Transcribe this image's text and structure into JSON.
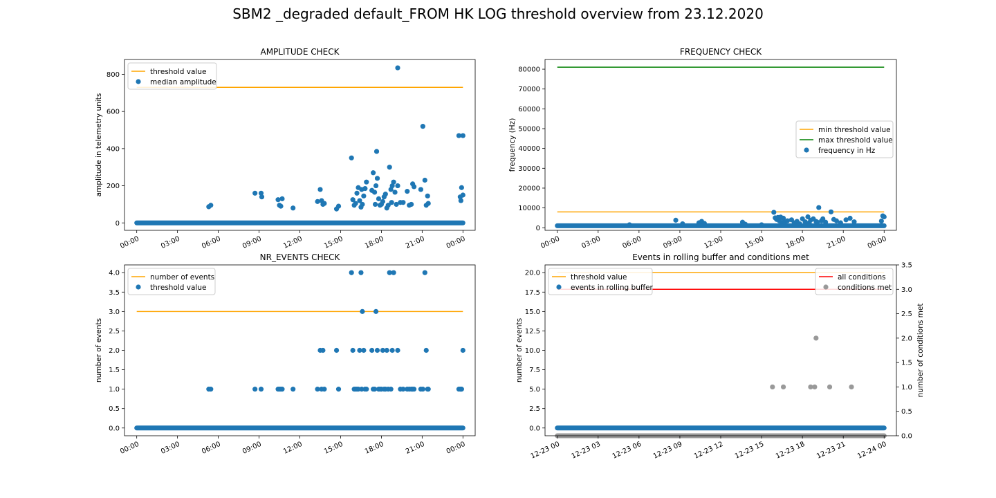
{
  "figure": {
    "title": "SBM2 _degraded default_FROM HK LOG threshold overview from 23.12.2020"
  },
  "colors": {
    "threshold": "#ffa500",
    "max_threshold": "#008000",
    "all_conditions": "#ff0000",
    "points": "#1f77b4",
    "conditions_met": "#999999"
  },
  "chart_data": [
    {
      "type": "scatter",
      "title": "AMPLITUDE CHECK",
      "xlabel": "",
      "ylabel": "amplitude in telemetry units",
      "xlim": [
        -0.9,
        24.9
      ],
      "ylim": [
        -40,
        880
      ],
      "x_ticks": [
        0,
        3,
        6,
        9,
        12,
        15,
        18,
        21,
        24
      ],
      "x_tick_labels": [
        "00:00",
        "03:00",
        "06:00",
        "09:00",
        "12:00",
        "15:00",
        "18:00",
        "21:00",
        "00:00"
      ],
      "y_ticks": [
        0,
        200,
        400,
        600,
        800
      ],
      "y_tick_labels": [
        "0",
        "200",
        "400",
        "600",
        "800"
      ],
      "legend": {
        "position": "top-left",
        "entries": [
          {
            "label": "threshold value",
            "kind": "line",
            "color": "#ffa500"
          },
          {
            "label": "median amplitude",
            "kind": "marker",
            "color": "#1f77b4"
          }
        ]
      },
      "lines": [
        {
          "name": "threshold value",
          "color": "#ffa500",
          "x": [
            0,
            24
          ],
          "y": [
            730,
            730
          ]
        }
      ],
      "baseline": {
        "x_start": 0,
        "x_end": 24,
        "y": 0
      },
      "points": {
        "x": [
          5.3,
          5.45,
          8.7,
          9.15,
          9.2,
          10.4,
          10.5,
          10.6,
          10.7,
          11.5,
          13.3,
          13.5,
          13.6,
          13.7,
          13.8,
          14.7,
          14.85,
          15.8,
          15.9,
          16.0,
          16.1,
          16.2,
          16.3,
          16.4,
          16.5,
          16.55,
          16.6,
          16.7,
          16.8,
          16.9,
          17.3,
          17.4,
          17.5,
          17.55,
          17.6,
          17.65,
          17.7,
          17.8,
          17.9,
          18.0,
          18.1,
          18.2,
          18.3,
          18.4,
          18.5,
          18.6,
          18.7,
          18.75,
          18.8,
          18.9,
          19.0,
          19.1,
          19.2,
          19.4,
          19.6,
          19.9,
          20.05,
          20.2,
          20.3,
          20.4,
          20.9,
          21.05,
          21.2,
          21.3,
          21.4,
          21.45,
          23.7,
          23.8,
          23.85,
          23.9,
          24.0,
          24.0
        ],
        "y": [
          87,
          95,
          160,
          160,
          140,
          125,
          95,
          90,
          130,
          80,
          115,
          180,
          120,
          100,
          105,
          75,
          90,
          350,
          125,
          95,
          105,
          160,
          190,
          120,
          85,
          180,
          100,
          145,
          185,
          220,
          175,
          270,
          165,
          100,
          200,
          385,
          240,
          130,
          95,
          100,
          115,
          140,
          155,
          80,
          95,
          300,
          180,
          110,
          200,
          220,
          165,
          100,
          200,
          110,
          110,
          170,
          95,
          100,
          210,
          195,
          180,
          520,
          230,
          95,
          145,
          105,
          470,
          140,
          120,
          190,
          150,
          470
        ]
      },
      "outlier": {
        "x": 19.2,
        "y": 835
      }
    },
    {
      "type": "scatter",
      "title": "FREQUENCY CHECK",
      "xlabel": "",
      "ylabel": "frequency (Hz)",
      "xlim": [
        -0.9,
        24.9
      ],
      "ylim": [
        -1300,
        84900
      ],
      "x_ticks": [
        0,
        3,
        6,
        9,
        12,
        15,
        18,
        21,
        24
      ],
      "x_tick_labels": [
        "00:00",
        "03:00",
        "06:00",
        "09:00",
        "12:00",
        "15:00",
        "18:00",
        "21:00",
        "00:00"
      ],
      "y_ticks": [
        0,
        10000,
        20000,
        30000,
        40000,
        50000,
        60000,
        70000,
        80000
      ],
      "y_tick_labels": [
        "0",
        "10000",
        "20000",
        "30000",
        "40000",
        "50000",
        "60000",
        "70000",
        "80000"
      ],
      "legend": {
        "position": "center-right",
        "entries": [
          {
            "label": "min threshold value",
            "kind": "line",
            "color": "#ffa500"
          },
          {
            "label": "max threshold value",
            "kind": "line",
            "color": "#008000"
          },
          {
            "label": "frequency in Hz",
            "kind": "marker",
            "color": "#1f77b4"
          }
        ]
      },
      "lines": [
        {
          "name": "min threshold value",
          "color": "#ffa500",
          "x": [
            0,
            24
          ],
          "y": [
            8000,
            8000
          ]
        },
        {
          "name": "max threshold value",
          "color": "#008000",
          "x": [
            0,
            24
          ],
          "y": [
            81000,
            81000
          ]
        }
      ],
      "baseline": {
        "x_start": 0,
        "x_end": 24,
        "y": 1000
      },
      "points": {
        "x": [
          5.3,
          8.7,
          9.2,
          10.4,
          10.6,
          10.8,
          13.6,
          13.8,
          15.0,
          15.9,
          16.0,
          16.1,
          16.2,
          16.3,
          16.4,
          16.5,
          16.6,
          16.7,
          16.9,
          17.2,
          17.4,
          17.6,
          17.8,
          18.0,
          18.2,
          18.4,
          18.5,
          18.6,
          18.8,
          19.0,
          19.1,
          19.2,
          19.4,
          19.5,
          19.7,
          20.1,
          20.3,
          20.5,
          20.8,
          21.2,
          21.5,
          21.8,
          23.8,
          23.9,
          24.0
        ],
        "y": [
          1500,
          3800,
          2000,
          2500,
          3200,
          2200,
          2800,
          1800,
          1500,
          7800,
          5000,
          4200,
          5200,
          3500,
          5400,
          2500,
          4800,
          2800,
          3500,
          4000,
          2500,
          3200,
          2000,
          4500,
          3000,
          5500,
          2500,
          3800,
          4500,
          3200,
          2800,
          10200,
          3500,
          4500,
          2800,
          8000,
          4200,
          3500,
          2500,
          4000,
          4800,
          3000,
          3400,
          6000,
          5500
        ]
      }
    },
    {
      "type": "scatter",
      "title": "NR_EVENTS CHECK",
      "xlabel": "",
      "ylabel": "number of events",
      "xlim": [
        -0.9,
        24.9
      ],
      "ylim": [
        -0.2,
        4.2
      ],
      "x_ticks": [
        0,
        3,
        6,
        9,
        12,
        15,
        18,
        21,
        24
      ],
      "x_tick_labels": [
        "00:00",
        "03:00",
        "06:00",
        "09:00",
        "12:00",
        "15:00",
        "18:00",
        "21:00",
        "00:00"
      ],
      "y_ticks": [
        0,
        0.5,
        1,
        1.5,
        2,
        2.5,
        3,
        3.5,
        4
      ],
      "y_tick_labels": [
        "0.0",
        "0.5",
        "1.0",
        "1.5",
        "2.0",
        "2.5",
        "3.0",
        "3.5",
        "4.0"
      ],
      "legend": {
        "position": "top-left",
        "entries": [
          {
            "label": "number of events",
            "kind": "line",
            "color": "#ffa500"
          },
          {
            "label": "threshold value",
            "kind": "marker",
            "color": "#1f77b4"
          }
        ]
      },
      "lines": [
        {
          "name": "number of events",
          "color": "#ffa500",
          "x": [
            0,
            24
          ],
          "y": [
            3,
            3
          ]
        }
      ],
      "baseline": {
        "x_start": 0,
        "x_end": 24,
        "y": 0
      },
      "points": {
        "x": [
          5.3,
          5.45,
          8.7,
          9.15,
          10.4,
          10.5,
          10.6,
          10.7,
          11.5,
          13.3,
          13.5,
          13.6,
          13.7,
          13.8,
          14.7,
          14.85,
          15.8,
          15.9,
          16.0,
          16.1,
          16.2,
          16.3,
          16.4,
          16.5,
          16.55,
          16.6,
          16.7,
          16.8,
          16.9,
          17.3,
          17.4,
          17.5,
          17.6,
          17.7,
          17.8,
          17.9,
          18.0,
          18.1,
          18.2,
          18.3,
          18.4,
          18.5,
          18.6,
          18.7,
          18.8,
          18.9,
          19.2,
          19.4,
          19.6,
          19.9,
          20.05,
          20.2,
          20.3,
          20.4,
          20.9,
          21.05,
          21.2,
          21.3,
          21.4,
          21.45,
          23.7,
          23.8,
          23.85,
          23.9,
          24.0
        ],
        "y": [
          1,
          1,
          1,
          1,
          1,
          1,
          1,
          1,
          1,
          1,
          2,
          1,
          2,
          1,
          2,
          1,
          4,
          2,
          1,
          1,
          1,
          1,
          2,
          4,
          1,
          3,
          2,
          1,
          1,
          2,
          1,
          1,
          3,
          2,
          1,
          1,
          1,
          2,
          1,
          1,
          2,
          1,
          4,
          1,
          2,
          4,
          2,
          1,
          1,
          1,
          1,
          1,
          1,
          1,
          1,
          1,
          4,
          2,
          1,
          1,
          1,
          1,
          1,
          1,
          2
        ]
      }
    },
    {
      "type": "scatter",
      "title": "Events in rolling buffer and conditions met",
      "xlabel": "",
      "ylabel": "number of events",
      "ylabel_right": "number of conditions met",
      "xlim": [
        -0.9,
        24.9
      ],
      "ylim": [
        -1,
        21
      ],
      "ylim_right": [
        0,
        3.5
      ],
      "x_ticks": [
        0,
        3,
        6,
        9,
        12,
        15,
        18,
        21,
        24
      ],
      "x_tick_labels": [
        "12-23 00",
        "12-23 03",
        "12-23 06",
        "12-23 09",
        "12-23 12",
        "12-23 15",
        "12-23 18",
        "12-23 21",
        "12-24 00"
      ],
      "y_ticks": [
        0,
        2.5,
        5,
        7.5,
        10,
        12.5,
        15,
        17.5,
        20
      ],
      "y_tick_labels": [
        "0.0",
        "2.5",
        "5.0",
        "7.5",
        "10.0",
        "12.5",
        "15.0",
        "17.5",
        "20.0"
      ],
      "y_ticks_right": [
        0,
        0.5,
        1,
        1.5,
        2,
        2.5,
        3,
        3.5
      ],
      "y_tick_labels_right": [
        "0.0",
        "0.5",
        "1.0",
        "1.5",
        "2.0",
        "2.5",
        "3.0",
        "3.5"
      ],
      "legend": {
        "position": "top-left",
        "entries": [
          {
            "label": "threshold value",
            "kind": "line",
            "color": "#ffa500"
          },
          {
            "label": "events in rolling buffer",
            "kind": "marker",
            "color": "#1f77b4"
          }
        ]
      },
      "legend_right": {
        "position": "top-right",
        "entries": [
          {
            "label": "all conditions",
            "kind": "line",
            "color": "#ff0000"
          },
          {
            "label": "conditions met",
            "kind": "marker",
            "color": "#999999"
          }
        ]
      },
      "lines": [
        {
          "name": "threshold value",
          "color": "#ffa500",
          "x": [
            0,
            24
          ],
          "y": [
            20,
            20
          ]
        }
      ],
      "lines_right": [
        {
          "name": "all conditions",
          "color": "#ff0000",
          "x": [
            0,
            24
          ],
          "y": [
            3,
            3
          ]
        }
      ],
      "baseline": {
        "x_start": 0,
        "x_end": 24,
        "y": 0
      },
      "baseline_right": {
        "x_start": 0,
        "x_end": 24,
        "y": 0
      },
      "points": {
        "x": [],
        "y": []
      },
      "points_right": {
        "x": [
          15.8,
          16.6,
          18.6,
          18.9,
          19.0,
          20.0,
          21.6
        ],
        "y": [
          1,
          1,
          1,
          1,
          2,
          1,
          1
        ]
      }
    }
  ]
}
